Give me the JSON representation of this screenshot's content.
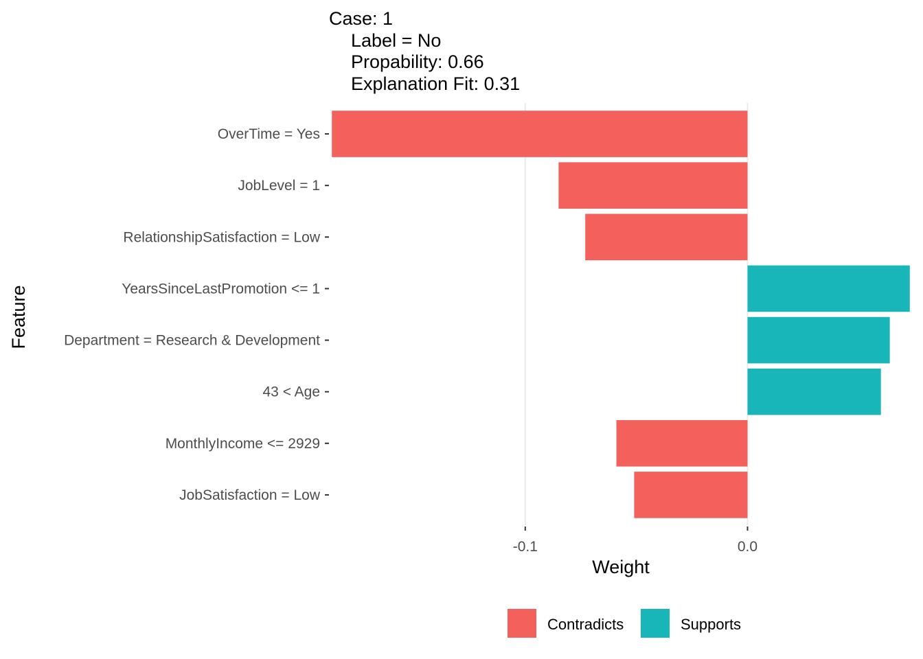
{
  "chart_data": {
    "type": "bar",
    "orientation": "horizontal",
    "title_lines": [
      "Case: 1",
      "Label = No",
      "Propability: 0.66",
      "Explanation Fit: 0.31"
    ],
    "xlabel": "Weight",
    "ylabel": "Feature",
    "xlim": [
      -0.188,
      0.074
    ],
    "x_ticks": [
      -0.1,
      0.0
    ],
    "x_tick_labels": [
      "-0.1",
      "0.0"
    ],
    "grid": "vertical major lines",
    "categories": [
      "OverTime = Yes",
      "JobLevel = 1",
      "RelationshipSatisfaction = Low",
      "YearsSinceLastPromotion <= 1",
      "Department = Research & Development",
      "43 < Age",
      "MonthlyIncome <= 2929",
      "JobSatisfaction = Low"
    ],
    "values": [
      -0.187,
      -0.085,
      -0.073,
      0.073,
      0.064,
      0.06,
      -0.059,
      -0.051
    ],
    "bar_type": [
      "Contradicts",
      "Contradicts",
      "Contradicts",
      "Supports",
      "Supports",
      "Supports",
      "Contradicts",
      "Contradicts"
    ],
    "legend": {
      "placement": "bottom",
      "entries": [
        {
          "label": "Contradicts",
          "color": "#F8766D"
        },
        {
          "label": "Supports",
          "color": "#00BFC4"
        }
      ]
    },
    "colors": {
      "Contradicts": "#F4605B",
      "Supports": "#18B5B9",
      "grid": "#EBEBEB"
    }
  }
}
